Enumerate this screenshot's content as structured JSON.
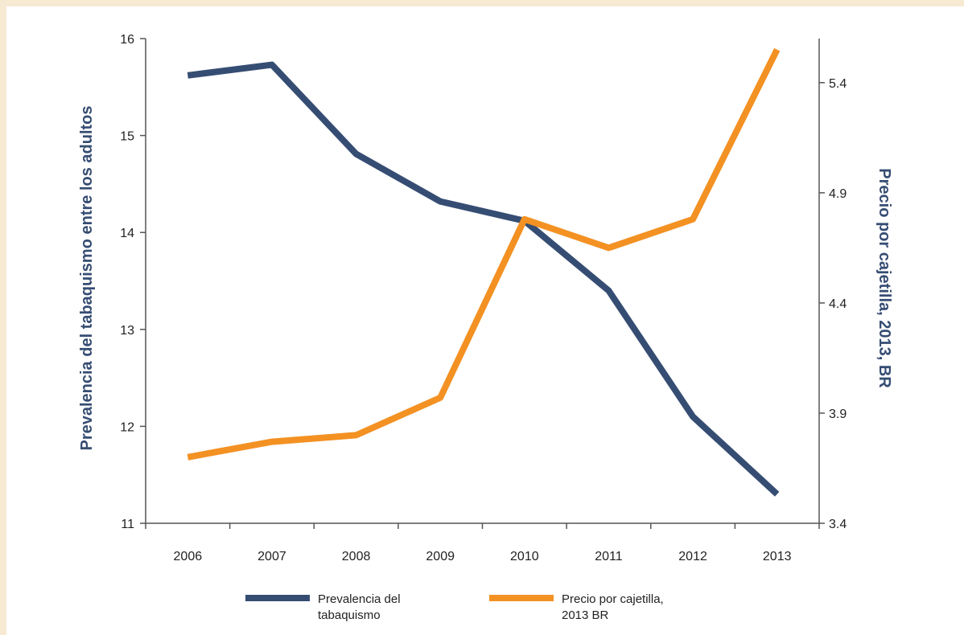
{
  "chart_data": {
    "type": "line",
    "x": [
      "2006",
      "2007",
      "2008",
      "2009",
      "2010",
      "2011",
      "2012",
      "2013"
    ],
    "ylabel_left": "Prevalencia del tabaquismo entre los adultos",
    "ylabel_right": "Precio por cajetilla, 2013, BR",
    "ylim_left": [
      11,
      16
    ],
    "ylim_right": [
      3.4,
      5.6
    ],
    "yticks_left": [
      "11",
      "12",
      "13",
      "14",
      "15",
      "16"
    ],
    "yticks_right": [
      "3.4",
      "3.9",
      "4.4",
      "4.9",
      "5.4"
    ],
    "grid": false,
    "legend_position": "bottom",
    "series": [
      {
        "name": "Prevalencia del tabaquismo",
        "name_lines": [
          "Prevalencia del",
          "tabaquismo"
        ],
        "axis": "left",
        "color": "#364d73",
        "values": [
          15.62,
          15.73,
          14.81,
          14.32,
          14.12,
          13.4,
          12.1,
          11.3
        ]
      },
      {
        "name": "Precio por cajetilla, 2013 BR",
        "name_lines": [
          "Precio por cajetilla,",
          "2013 BR"
        ],
        "axis": "right",
        "color": "#f39123",
        "values": [
          3.7,
          3.77,
          3.8,
          3.97,
          4.78,
          4.65,
          4.78,
          5.55
        ]
      }
    ]
  }
}
